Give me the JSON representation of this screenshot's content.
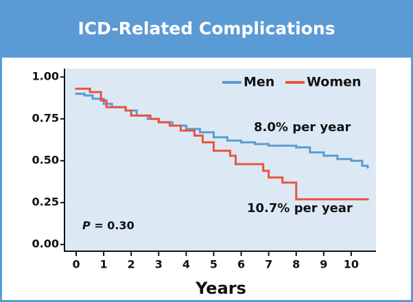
{
  "chart_data": {
    "type": "step",
    "title": "ICD-Related Complications",
    "xlabel": "Years",
    "xlim": [
      -0.4,
      10.9
    ],
    "ylim": [
      -0.04,
      1.05
    ],
    "xticks": [
      0,
      1,
      2,
      3,
      4,
      5,
      6,
      7,
      8,
      9,
      10
    ],
    "yticks": [
      {
        "value": 0,
        "label": "0.00"
      },
      {
        "value": 0.25,
        "label": "0.25"
      },
      {
        "value": 0.5,
        "label": "0.50"
      },
      {
        "value": 0.75,
        "label": "0.75"
      },
      {
        "value": 1,
        "label": "1.00"
      }
    ],
    "legend": "upper right",
    "annotations": [
      "8.0% per year",
      "10.7% per year"
    ],
    "p_symbol": "P",
    "p_text": "= 0.30",
    "series": [
      {
        "name": "Men",
        "color": "#5b9bd5",
        "x": [
          0,
          0.3,
          0.6,
          1,
          1.3,
          1.8,
          2.2,
          2.6,
          3,
          3.5,
          4,
          4.5,
          5,
          5.5,
          6,
          6.5,
          7,
          7.5,
          8,
          8.5,
          9,
          9.5,
          10,
          10.4,
          10.6
        ],
        "values": [
          0.9,
          0.89,
          0.87,
          0.84,
          0.82,
          0.8,
          0.77,
          0.75,
          0.73,
          0.71,
          0.69,
          0.67,
          0.64,
          0.62,
          0.61,
          0.6,
          0.59,
          0.59,
          0.58,
          0.55,
          0.53,
          0.51,
          0.5,
          0.47,
          0.46
        ]
      },
      {
        "name": "Women",
        "color": "#e8553a",
        "x": [
          0,
          0.5,
          0.9,
          1.1,
          1.8,
          2.0,
          2.7,
          3.0,
          3.4,
          3.8,
          4.3,
          4.6,
          5.0,
          5.6,
          5.8,
          6.8,
          7.0,
          7.5,
          8.0,
          10.6
        ],
        "values": [
          0.93,
          0.91,
          0.86,
          0.82,
          0.8,
          0.77,
          0.75,
          0.73,
          0.71,
          0.68,
          0.65,
          0.61,
          0.56,
          0.53,
          0.48,
          0.44,
          0.4,
          0.37,
          0.27,
          0.27
        ]
      }
    ]
  }
}
